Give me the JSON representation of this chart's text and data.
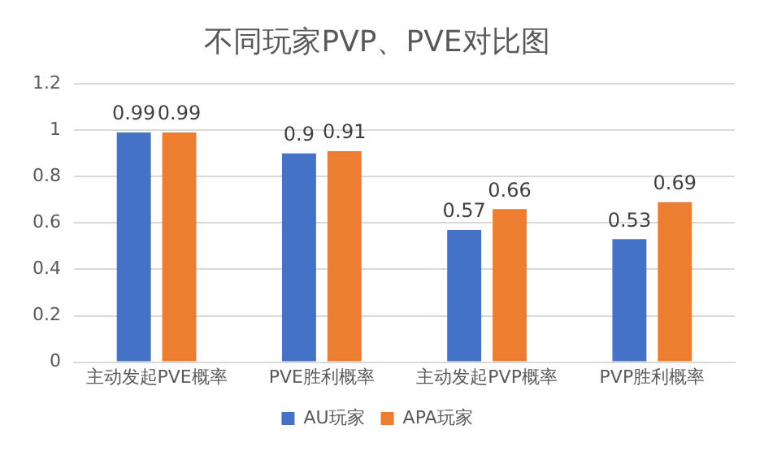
{
  "chart_data": {
    "type": "bar",
    "title": "不同玩家PVP、PVE对比图",
    "categories": [
      "主动发起PVE概率",
      "PVE胜利概率",
      "主动发起PVP概率",
      "PVP胜利概率"
    ],
    "series": [
      {
        "name": "AU玩家",
        "color": "#4472c4",
        "values": [
          0.99,
          0.9,
          0.57,
          0.53
        ]
      },
      {
        "name": "APA玩家",
        "color": "#ed7d31",
        "values": [
          0.99,
          0.91,
          0.66,
          0.69
        ]
      }
    ],
    "ylim": [
      0,
      1.2
    ],
    "yticks": [
      0,
      0.2,
      0.4,
      0.6,
      0.8,
      1,
      1.2
    ],
    "grid": "y",
    "legend": "bottom",
    "data_labels": true
  }
}
